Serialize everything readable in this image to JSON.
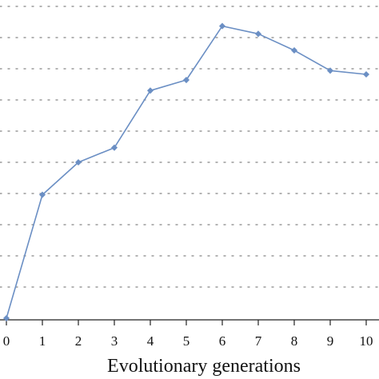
{
  "chart_data": {
    "type": "line",
    "xlabel": "Evolutionary generations",
    "ylabel": "",
    "title": "",
    "x": [
      0,
      1,
      2,
      3,
      4,
      5,
      6,
      7,
      8,
      9,
      10
    ],
    "x_tick_labels": [
      "0",
      "1",
      "2",
      "3",
      "4",
      "5",
      "6",
      "7",
      "8",
      "9",
      "10"
    ],
    "series": [
      {
        "values": [
          0.0,
          3.96,
          5.0,
          5.47,
          7.3,
          7.64,
          9.37,
          9.12,
          8.59,
          7.94,
          7.82
        ],
        "color": "#6b8fc4",
        "marker": "diamond"
      }
    ],
    "y_grid_values": [
      1,
      2,
      3,
      4,
      5,
      6,
      7,
      8,
      9,
      10
    ],
    "ylim": [
      0,
      10.5
    ],
    "xlim": [
      0,
      10.6
    ],
    "grid": true,
    "grid_style": "dotted-horizontal",
    "legend": "none"
  }
}
